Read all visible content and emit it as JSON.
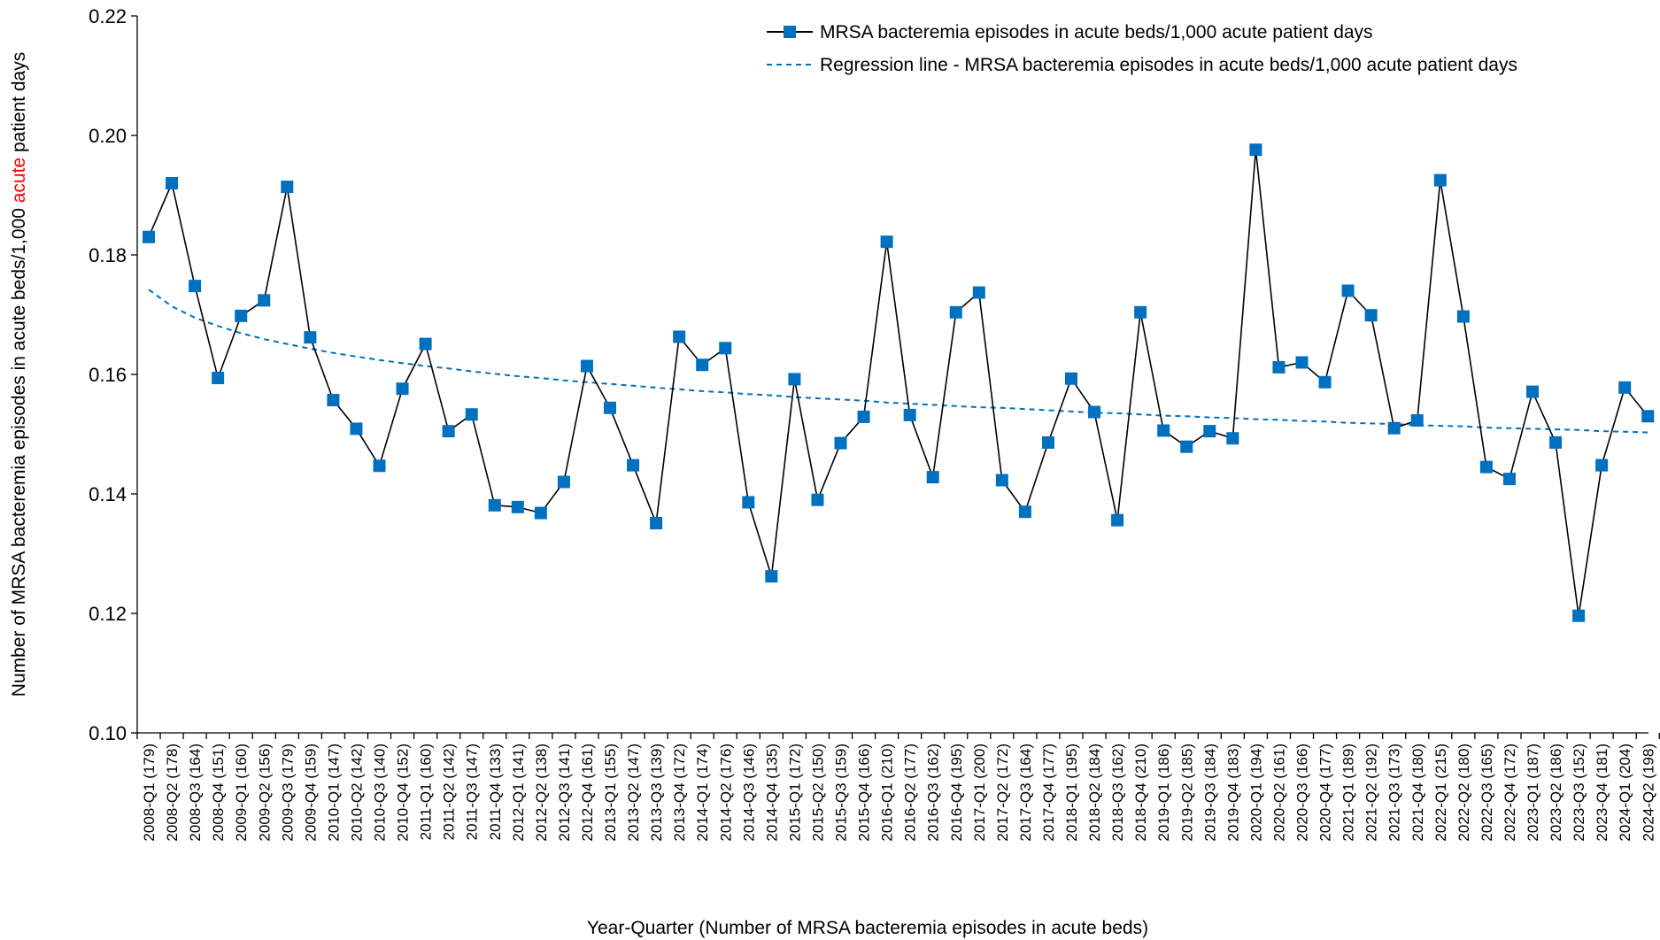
{
  "chart_data": {
    "type": "line",
    "ylabel_parts": [
      "Number of MRSA bacteremia episodes in acute beds/1,000 ",
      "acute",
      " patient days"
    ],
    "ylabel_highlight_color": "#ff0000",
    "xlabel": "Year-Quarter (Number of MRSA bacteremia episodes in acute beds)",
    "ylim": [
      0.1,
      0.22
    ],
    "yticks": [
      "0.10",
      "0.12",
      "0.14",
      "0.16",
      "0.18",
      "0.20",
      "0.22"
    ],
    "grid": false,
    "legend_position": "top-right",
    "categories": [
      "2008-Q1 (179)",
      "2008-Q2 (178)",
      "2008-Q3 (164)",
      "2008-Q4 (151)",
      "2009-Q1 (160)",
      "2009-Q2 (156)",
      "2009-Q3 (179)",
      "2009-Q4 (159)",
      "2010-Q1 (147)",
      "2010-Q2 (142)",
      "2010-Q3 (140)",
      "2010-Q4 (152)",
      "2011-Q1 (160)",
      "2011-Q2 (142)",
      "2011-Q3 (147)",
      "2011-Q4 (133)",
      "2012-Q1 (141)",
      "2012-Q2 (138)",
      "2012-Q3 (141)",
      "2012-Q4 (161)",
      "2013-Q1 (155)",
      "2013-Q2 (147)",
      "2013-Q3 (139)",
      "2013-Q4 (172)",
      "2014-Q1 (174)",
      "2014-Q2 (176)",
      "2014-Q3 (146)",
      "2014-Q4 (135)",
      "2015-Q1 (172)",
      "2015-Q2 (150)",
      "2015-Q3 (159)",
      "2015-Q4 (166)",
      "2016-Q1 (210)",
      "2016-Q2 (177)",
      "2016-Q3 (162)",
      "2016-Q4 (195)",
      "2017-Q1 (200)",
      "2017-Q2 (172)",
      "2017-Q3 (164)",
      "2017-Q4 (177)",
      "2018-Q1 (195)",
      "2018-Q2 (184)",
      "2018-Q3 (162)",
      "2018-Q4 (210)",
      "2019-Q1 (186)",
      "2019-Q2 (185)",
      "2019-Q3 (184)",
      "2019-Q4 (183)",
      "2020-Q1 (194)",
      "2020-Q2 (161)",
      "2020-Q3 (166)",
      "2020-Q4 (177)",
      "2021-Q1 (189)",
      "2021-Q2 (192)",
      "2021-Q3 (173)",
      "2021-Q4 (180)",
      "2022-Q1 (215)",
      "2022-Q2 (180)",
      "2022-Q3 (165)",
      "2022-Q4 (172)",
      "2023-Q1 (187)",
      "2023-Q2 (186)",
      "2023-Q3 (152)",
      "2023-Q4 (181)",
      "2024-Q1 (204)",
      "2024-Q2 (198)"
    ],
    "series": [
      {
        "name": "MRSA bacteremia episodes in acute beds/1,000 acute patient days",
        "color": "#0070c0",
        "line_color": "#000000",
        "values": [
          0.183,
          0.192,
          0.1748,
          0.1594,
          0.1698,
          0.1724,
          0.1914,
          0.1662,
          0.1557,
          0.1509,
          0.1447,
          0.1576,
          0.1651,
          0.1505,
          0.1533,
          0.1381,
          0.1378,
          0.1368,
          0.142,
          0.1614,
          0.1544,
          0.1448,
          0.1351,
          0.1663,
          0.1616,
          0.1644,
          0.1386,
          0.1262,
          0.1592,
          0.139,
          0.1485,
          0.1529,
          0.1822,
          0.1532,
          0.1428,
          0.1704,
          0.1737,
          0.1423,
          0.137,
          0.1486,
          0.1593,
          0.1537,
          0.1356,
          0.1704,
          0.1506,
          0.1479,
          0.1505,
          0.1493,
          0.1976,
          0.1612,
          0.162,
          0.1587,
          0.174,
          0.1699,
          0.151,
          0.1523,
          0.1925,
          0.1697,
          0.1445,
          0.1425,
          0.1571,
          0.1486,
          0.1196,
          0.1448,
          0.1578,
          0.153
        ]
      },
      {
        "name": "Regression line - MRSA bacteremia episodes in acute beds/1,000 acute patient days",
        "color": "#0070c0",
        "style": "dashed",
        "values": [
          0.1742,
          0.1714,
          0.1695,
          0.1681,
          0.1669,
          0.1659,
          0.1651,
          0.1643,
          0.1636,
          0.163,
          0.1624,
          0.1619,
          0.1614,
          0.161,
          0.1605,
          0.1601,
          0.1597,
          0.1594,
          0.159,
          0.1587,
          0.1584,
          0.1581,
          0.1578,
          0.1575,
          0.1572,
          0.157,
          0.1567,
          0.1565,
          0.1562,
          0.156,
          0.1558,
          0.1556,
          0.1553,
          0.1551,
          0.1549,
          0.1547,
          0.1545,
          0.1544,
          0.1542,
          0.154,
          0.1538,
          0.1536,
          0.1535,
          0.1533,
          0.1531,
          0.153,
          0.1528,
          0.1527,
          0.1525,
          0.1524,
          0.1522,
          0.1521,
          0.1519,
          0.1518,
          0.1517,
          0.1515,
          0.1514,
          0.1513,
          0.1511,
          0.151,
          0.1509,
          0.1508,
          0.1507,
          0.1505,
          0.1504,
          0.1503
        ]
      }
    ]
  }
}
